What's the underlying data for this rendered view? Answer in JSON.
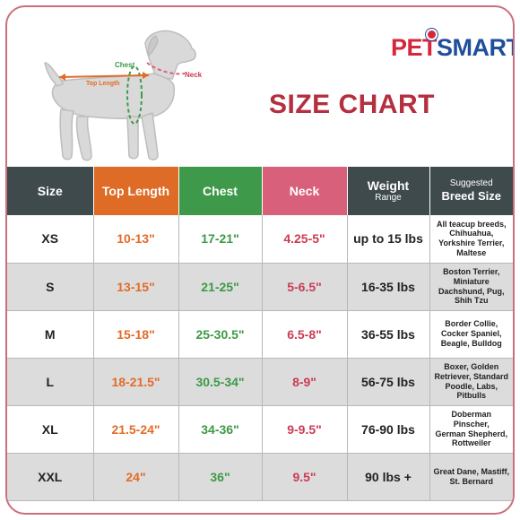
{
  "brand": {
    "name_part1": "PET",
    "name_part2": "SMART"
  },
  "title": "SIZE CHART",
  "diagram_labels": {
    "chest": "Chest",
    "neck": "Neck",
    "top_length": "Top Length"
  },
  "headers": {
    "size": "Size",
    "top_length": "Top Length",
    "chest": "Chest",
    "neck": "Neck",
    "weight": "Weight",
    "weight_sub": "Range",
    "breed_sub": "Suggested",
    "breed": "Breed Size"
  },
  "colors": {
    "header_dark": "#3f4a4d",
    "header_orange": "#de6b26",
    "header_green": "#3e9a4a",
    "header_pink": "#d9607a",
    "title_red": "#b42f40",
    "frame_border": "#c9707d"
  },
  "rows": [
    {
      "size": "XS",
      "top_length": "10-13\"",
      "chest": "17-21\"",
      "neck": "4.25-5\"",
      "weight": "up to 15 lbs",
      "breeds": [
        "All teacup breeds,",
        "Chihuahua,",
        "Yorkshire Terrier,",
        "Maltese"
      ]
    },
    {
      "size": "S",
      "top_length": "13-15\"",
      "chest": "21-25\"",
      "neck": "5-6.5\"",
      "weight": "16-35 lbs",
      "breeds": [
        "Boston Terrier,",
        "Miniature",
        "Dachshund, Pug,",
        "Shih Tzu"
      ]
    },
    {
      "size": "M",
      "top_length": "15-18\"",
      "chest": "25-30.5\"",
      "neck": "6.5-8\"",
      "weight": "36-55 lbs",
      "breeds": [
        "Border Collie,",
        "Cocker Spaniel,",
        "Beagle, Bulldog"
      ]
    },
    {
      "size": "L",
      "top_length": "18-21.5\"",
      "chest": "30.5-34\"",
      "neck": "8-9\"",
      "weight": "56-75 lbs",
      "breeds": [
        "Boxer, Golden",
        "Retriever, Standard",
        "Poodle, Labs,",
        "Pitbulls"
      ]
    },
    {
      "size": "XL",
      "top_length": "21.5-24\"",
      "chest": "34-36\"",
      "neck": "9-9.5\"",
      "weight": "76-90 lbs",
      "breeds": [
        "Doberman Pinscher,",
        "German Shepherd,",
        "Rottweiler"
      ]
    },
    {
      "size": "XXL",
      "top_length": "24\"",
      "chest": "36\"",
      "neck": "9.5\"",
      "weight": "90 lbs +",
      "breeds": [
        "Great Dane, Mastiff,",
        "St. Bernard"
      ]
    }
  ]
}
